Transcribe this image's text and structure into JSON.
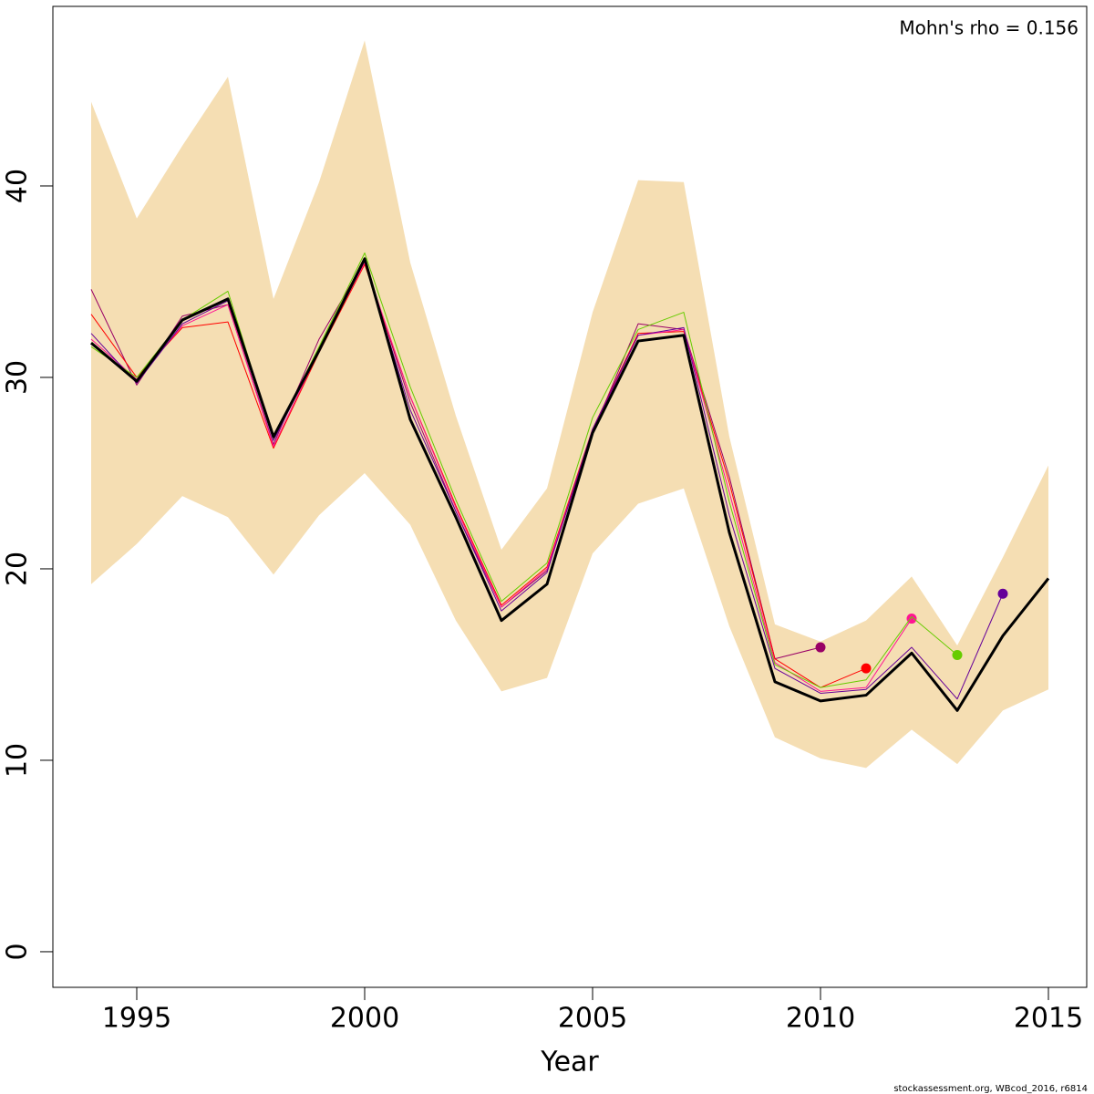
{
  "chart_data": {
    "type": "line",
    "xlabel": "Year",
    "annotation": "Mohn's rho = 0.156",
    "footer": "stockassessment.org, WBcod_2016, r6814",
    "x": [
      1994,
      1995,
      1996,
      1997,
      1998,
      1999,
      2000,
      2001,
      2002,
      2003,
      2004,
      2005,
      2006,
      2007,
      2008,
      2009,
      2010,
      2011,
      2012,
      2013,
      2014,
      2015
    ],
    "xlim": [
      1993.16,
      2015.84
    ],
    "xticks": [
      1995,
      2000,
      2005,
      2010,
      2015
    ],
    "ylim": [
      -1.86,
      49.38
    ],
    "yticks": [
      0,
      10,
      20,
      30,
      40
    ],
    "band": {
      "color": "#f5deb3",
      "upper": [
        44.4,
        38.3,
        42.1,
        45.7,
        34.1,
        40.2,
        47.6,
        36.0,
        28.0,
        21.0,
        24.2,
        33.4,
        40.3,
        40.2,
        26.9,
        17.1,
        16.2,
        17.3,
        19.6,
        16.0,
        20.6,
        25.4
      ],
      "lower": [
        19.2,
        21.3,
        23.8,
        22.7,
        19.7,
        22.8,
        25.0,
        22.3,
        17.3,
        13.6,
        14.3,
        20.8,
        23.4,
        24.2,
        17.0,
        11.2,
        10.1,
        9.6,
        11.6,
        9.8,
        12.6,
        13.7
      ]
    },
    "end_markers": true,
    "series": [
      {
        "color": "#990066",
        "width": 1,
        "values": [
          34.6,
          29.6,
          33.2,
          33.8,
          26.5,
          32.0,
          36.1,
          28.7,
          23.0,
          18.0,
          19.9,
          27.1,
          32.8,
          32.5,
          24.8,
          15.3,
          15.9,
          null,
          null,
          null,
          null,
          null
        ]
      },
      {
        "color": "#ff0000",
        "width": 1,
        "values": [
          33.3,
          30.0,
          32.6,
          32.9,
          26.3,
          31.3,
          35.9,
          29.0,
          23.3,
          18.1,
          20.1,
          27.3,
          32.3,
          32.4,
          24.5,
          15.3,
          13.8,
          14.8,
          null,
          null,
          null,
          null
        ]
      },
      {
        "color": "#ff1493",
        "width": 1,
        "values": [
          32.0,
          29.9,
          32.7,
          33.8,
          26.4,
          31.4,
          36.0,
          29.0,
          23.2,
          18.0,
          20.0,
          27.2,
          32.2,
          32.5,
          24.0,
          15.1,
          13.6,
          13.8,
          17.4,
          null,
          null,
          null
        ]
      },
      {
        "color": "#66cc00",
        "width": 1,
        "values": [
          31.6,
          30.0,
          33.0,
          34.5,
          26.8,
          31.6,
          36.5,
          29.5,
          23.6,
          18.3,
          20.3,
          27.9,
          32.5,
          33.4,
          23.5,
          15.0,
          13.8,
          14.2,
          17.5,
          15.5,
          null,
          null
        ]
      },
      {
        "color": "#660099",
        "width": 1,
        "values": [
          32.3,
          29.7,
          32.8,
          34.0,
          26.7,
          31.4,
          36.1,
          28.3,
          23.0,
          17.8,
          19.8,
          27.3,
          32.2,
          32.6,
          22.8,
          14.8,
          13.5,
          13.7,
          15.9,
          13.2,
          18.7,
          null
        ]
      },
      {
        "color": "#000000",
        "width": 3,
        "values": [
          31.8,
          29.8,
          33.0,
          34.1,
          26.9,
          31.4,
          36.2,
          27.8,
          22.7,
          17.3,
          19.2,
          27.1,
          31.9,
          32.2,
          21.9,
          14.1,
          13.1,
          13.4,
          15.6,
          12.6,
          16.5,
          19.5
        ]
      }
    ]
  }
}
